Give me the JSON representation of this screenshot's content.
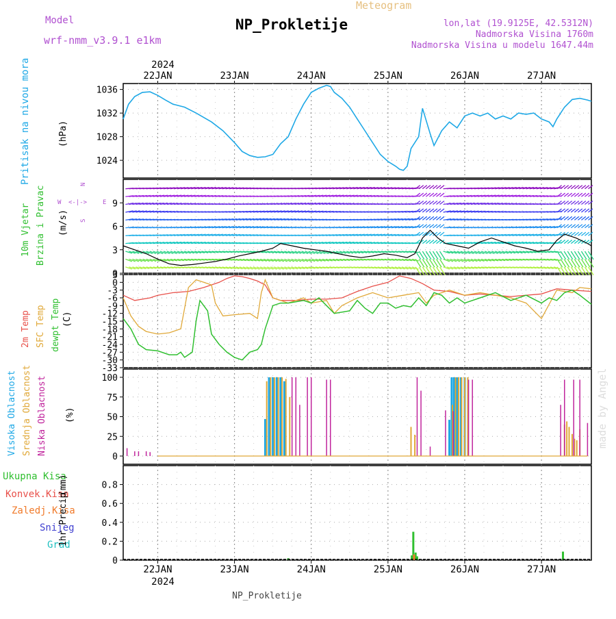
{
  "header": {
    "model_label": "Model",
    "model_name": "wrf-nmm_v3.9.1 e1km",
    "meteogram_label": "Meteogram",
    "station_title": "NP_Prokletije",
    "coords": "lon,lat (19.9125E, 42.5312N)",
    "altitude": "Nadmorska Visina 1760m",
    "model_altitude": "Nadmorska Visina u modelu 1647.44m",
    "year": "2024",
    "footer_name": "NP_Prokletije",
    "credit": "made by Angel"
  },
  "colors": {
    "pressure": "#1ea8e6",
    "temp2m": "#e8504a",
    "sfc_temp": "#e0a838",
    "dewpoint": "#2fbf2f",
    "high_cloud": "#1ea8e6",
    "mid_cloud": "#e0a838",
    "low_cloud": "#c0249c",
    "total_precip": "#2fbf2f",
    "conv_precip": "#e8504a",
    "grid_precip": "#f07a2a",
    "snow": "#4040d0",
    "hail": "#20c0c0",
    "purple_text": "#b050d0",
    "gust": "#e8504a"
  },
  "chart_data": [
    {
      "type": "line",
      "title": "",
      "ylabel_series": "Pritisak na nivou mora",
      "ylabel_unit": "(hPa)",
      "x_ticks": [
        "22JAN",
        "23JAN",
        "24JAN",
        "25JAN",
        "26JAN",
        "27JAN"
      ],
      "xlim_days": [
        -0.45,
        5.65
      ],
      "ylim": [
        1021,
        1037
      ],
      "yticks": [
        1024,
        1028,
        1032,
        1036
      ],
      "grid": true,
      "series": [
        {
          "name": "Pritisak na nivou mora",
          "x": [
            -0.45,
            -0.38,
            -0.3,
            -0.2,
            -0.1,
            0,
            0.1,
            0.2,
            0.35,
            0.5,
            0.7,
            0.85,
            1.0,
            1.1,
            1.2,
            1.3,
            1.4,
            1.5,
            1.6,
            1.7,
            1.8,
            1.9,
            2.0,
            2.1,
            2.2,
            2.25,
            2.3,
            2.4,
            2.5,
            2.6,
            2.7,
            2.8,
            2.9,
            3.0,
            3.1,
            3.15,
            3.2,
            3.25,
            3.3,
            3.4,
            3.45,
            3.55,
            3.6,
            3.7,
            3.8,
            3.9,
            4.0,
            4.1,
            4.2,
            4.3,
            4.4,
            4.5,
            4.6,
            4.7,
            4.8,
            4.9,
            5.0,
            5.1,
            5.15,
            5.2,
            5.3,
            5.4,
            5.5,
            5.6,
            5.65
          ],
          "y": [
            1031,
            1033.5,
            1034.8,
            1035.5,
            1035.6,
            1035,
            1034.2,
            1033.5,
            1033,
            1032,
            1030.5,
            1029,
            1027,
            1025.5,
            1024.8,
            1024.5,
            1024.6,
            1025,
            1026.8,
            1028,
            1031,
            1033.5,
            1035.5,
            1036.2,
            1036.7,
            1036.5,
            1035.5,
            1034.5,
            1033,
            1031,
            1029,
            1027,
            1025,
            1023.8,
            1023,
            1022.5,
            1022.3,
            1023,
            1026,
            1028,
            1032.8,
            1028.5,
            1026.5,
            1029,
            1030.5,
            1029.5,
            1031.5,
            1032,
            1031.5,
            1032,
            1031,
            1031.5,
            1031,
            1032,
            1031.8,
            1032,
            1031,
            1030.5,
            1029.7,
            1031,
            1033,
            1034.3,
            1034.5,
            1034.2,
            1034
          ]
        }
      ]
    },
    {
      "type": "line",
      "title": "",
      "ylabel_series": "10m Vjetar Brzina i Pravac",
      "ylabel_unit": "(m/s)",
      "compass": [
        "N",
        "S",
        "W",
        "E"
      ],
      "ylim": [
        0,
        12
      ],
      "yticks": [
        0,
        3,
        6,
        9
      ],
      "grid": true,
      "series": [
        {
          "name": "10m Vjetar Brzina",
          "x": [
            -0.45,
            -0.3,
            -0.15,
            0,
            0.15,
            0.3,
            0.45,
            0.6,
            0.75,
            0.9,
            1.05,
            1.2,
            1.35,
            1.5,
            1.6,
            1.75,
            1.9,
            2.05,
            2.2,
            2.35,
            2.5,
            2.65,
            2.8,
            2.95,
            3.1,
            3.25,
            3.35,
            3.45,
            3.55,
            3.65,
            3.75,
            3.9,
            4.05,
            4.2,
            4.35,
            4.5,
            4.65,
            4.8,
            4.95,
            5.1,
            5.2,
            5.3,
            5.45,
            5.6,
            5.65
          ],
          "y": [
            3.5,
            3,
            2.5,
            1.8,
            1.2,
            1,
            1.1,
            1.3,
            1.5,
            1.8,
            2.2,
            2.5,
            2.8,
            3.2,
            3.8,
            3.5,
            3.2,
            3,
            2.8,
            2.5,
            2.2,
            2,
            2.2,
            2.5,
            2.3,
            2,
            2.5,
            4.5,
            5.5,
            4.5,
            3.8,
            3.5,
            3.2,
            4,
            4.5,
            4,
            3.5,
            3.2,
            2.8,
            3,
            4.2,
            5,
            4.5,
            3.8,
            3.5
          ]
        }
      ]
    },
    {
      "type": "line",
      "title": "",
      "legend": [
        "2m Temp",
        "SFC Temp",
        "dewpt Temp"
      ],
      "ylabel_unit": "(C)",
      "ylim": [
        -33,
        3
      ],
      "yticks": [
        3,
        0,
        -3,
        -6,
        -9,
        -12,
        -15,
        -18,
        -21,
        -24,
        -27,
        -30,
        -33
      ],
      "grid": true,
      "series": [
        {
          "name": "2m Temp",
          "x": [
            -0.45,
            -0.3,
            -0.1,
            0,
            0.2,
            0.4,
            0.6,
            0.8,
            0.9,
            1.0,
            1.1,
            1.2,
            1.3,
            1.4,
            1.5,
            1.6,
            1.8,
            2.0,
            2.2,
            2.4,
            2.6,
            2.8,
            3.0,
            3.15,
            3.3,
            3.45,
            3.6,
            3.8,
            4.0,
            4.2,
            4.4,
            4.6,
            4.8,
            5.0,
            5.2,
            5.4,
            5.65
          ],
          "y": [
            -5,
            -7,
            -6,
            -5,
            -4,
            -3.5,
            -2,
            0,
            1.5,
            2.5,
            2.2,
            1.5,
            0.5,
            -1,
            -6,
            -7,
            -7,
            -6.5,
            -6.5,
            -6,
            -3.5,
            -1.5,
            0,
            2.5,
            1.5,
            -0.5,
            -3,
            -3.5,
            -5,
            -4.5,
            -5,
            -5.5,
            -5,
            -4.5,
            -2.5,
            -3,
            -3.5
          ]
        },
        {
          "name": "SFC Temp",
          "x": [
            -0.45,
            -0.35,
            -0.25,
            -0.15,
            0,
            0.15,
            0.3,
            0.35,
            0.4,
            0.5,
            0.6,
            0.7,
            0.75,
            0.85,
            1.0,
            1.2,
            1.3,
            1.35,
            1.4,
            1.5,
            1.7,
            1.9,
            2.0,
            2.2,
            2.3,
            2.4,
            2.6,
            2.8,
            3.0,
            3.2,
            3.4,
            3.5,
            3.6,
            3.8,
            4.0,
            4.2,
            4.4,
            4.6,
            4.8,
            5.0,
            5.2,
            5.4,
            5.5,
            5.65
          ],
          "y": [
            -6,
            -13,
            -17,
            -19,
            -20,
            -19.5,
            -18,
            -10,
            -2,
            1,
            0,
            -1,
            -8,
            -13,
            -12.5,
            -12,
            -14,
            -4,
            1,
            -6,
            -8,
            -6,
            -8,
            -7,
            -12,
            -9,
            -6,
            -4,
            -6,
            -5,
            -4,
            -8,
            -5,
            -3,
            -5,
            -4,
            -5,
            -6,
            -8,
            -14,
            -3,
            -4,
            -2,
            -2.5
          ]
        },
        {
          "name": "dewpt Temp",
          "x": [
            -0.45,
            -0.35,
            -0.25,
            -0.15,
            0,
            0.15,
            0.25,
            0.3,
            0.35,
            0.45,
            0.5,
            0.55,
            0.65,
            0.7,
            0.8,
            0.9,
            1.0,
            1.1,
            1.2,
            1.3,
            1.35,
            1.4,
            1.5,
            1.6,
            1.7,
            1.8,
            1.9,
            2.0,
            2.1,
            2.2,
            2.3,
            2.5,
            2.6,
            2.7,
            2.8,
            2.9,
            3.0,
            3.1,
            3.2,
            3.3,
            3.4,
            3.5,
            3.6,
            3.7,
            3.8,
            3.9,
            4.0,
            4.2,
            4.4,
            4.6,
            4.8,
            5.0,
            5.1,
            5.2,
            5.3,
            5.4,
            5.5,
            5.65
          ],
          "y": [
            -14,
            -18,
            -24,
            -26,
            -26.5,
            -28,
            -28,
            -27,
            -29,
            -27,
            -15,
            -7,
            -11,
            -20,
            -24,
            -27,
            -29,
            -30,
            -27,
            -26,
            -24,
            -18,
            -9,
            -8,
            -8,
            -7.5,
            -7,
            -8,
            -6,
            -9,
            -12,
            -11,
            -7,
            -10,
            -12,
            -8,
            -8,
            -10,
            -9,
            -9.5,
            -6,
            -9,
            -4,
            -5,
            -8,
            -6,
            -8,
            -6,
            -4,
            -7,
            -5,
            -8,
            -6,
            -7,
            -4,
            -3,
            -5,
            -8.5
          ]
        }
      ]
    },
    {
      "type": "bar",
      "title": "",
      "legend": [
        "Visoka Oblacnost",
        "Srednja Oblacnost",
        "Niska Oblacnost"
      ],
      "ylabel_unit": "(%)",
      "ylim": [
        0,
        100
      ],
      "yticks": [
        0,
        25,
        50,
        75,
        100
      ],
      "grid": true,
      "series": [
        {
          "name": "Visoka Oblacnost",
          "x": [
            1.4,
            1.45,
            1.5,
            1.55,
            1.6,
            1.65,
            3.8,
            3.83,
            3.86,
            3.9,
            3.95,
            4.0
          ],
          "values": [
            47,
            100,
            100,
            100,
            100,
            95,
            46,
            100,
            100,
            100,
            100,
            100
          ]
        },
        {
          "name": "Srednja Oblacnost",
          "x": [
            1.42,
            1.47,
            1.52,
            1.57,
            1.62,
            1.67,
            1.72,
            3.3,
            3.35,
            3.84,
            3.88,
            3.92,
            3.96,
            4.0,
            4.04,
            5.3,
            5.33,
            5.36,
            5.4,
            5.43,
            5.46,
            5.5
          ],
          "values": [
            95,
            100,
            100,
            100,
            100,
            98,
            75,
            37,
            27,
            65,
            100,
            100,
            100,
            100,
            100,
            40,
            44,
            37,
            28,
            22,
            20,
            34
          ]
        },
        {
          "name": "Niska Oblacnost",
          "x": [
            -0.4,
            -0.3,
            -0.25,
            -0.15,
            -0.1,
            1.75,
            1.8,
            1.85,
            1.95,
            2.0,
            2.2,
            2.25,
            3.38,
            3.43,
            3.55,
            3.75,
            3.85,
            4.05,
            4.1,
            5.25,
            5.3,
            5.42,
            5.5,
            5.6
          ],
          "values": [
            10,
            6,
            6,
            6,
            5,
            100,
            100,
            65,
            100,
            100,
            97,
            97,
            100,
            83,
            12,
            58,
            57,
            97,
            97,
            65,
            97,
            97,
            97,
            42
          ]
        }
      ]
    },
    {
      "type": "bar",
      "title": "",
      "legend": [
        "Ukupna Kisa",
        "Konvek.Kisa",
        "Zaledj.Kisa",
        "Snijeg",
        "Grad"
      ],
      "ylabel_series": "1hr Precip",
      "ylabel_unit": "(mm)",
      "ylim": [
        0,
        1.0
      ],
      "yticks": [
        0,
        0.2,
        0.4,
        0.6,
        0.8
      ],
      "grid": true,
      "series": [
        {
          "name": "Ukupna Kisa",
          "x": [
            1.7,
            3.31,
            3.33,
            3.36,
            3.38,
            5.28
          ],
          "values": [
            0.02,
            0.05,
            0.3,
            0.08,
            0.04,
            0.09
          ]
        },
        {
          "name": "Zaledj.Kisa",
          "x": [
            3.34
          ],
          "values": [
            0.06
          ]
        }
      ]
    }
  ]
}
